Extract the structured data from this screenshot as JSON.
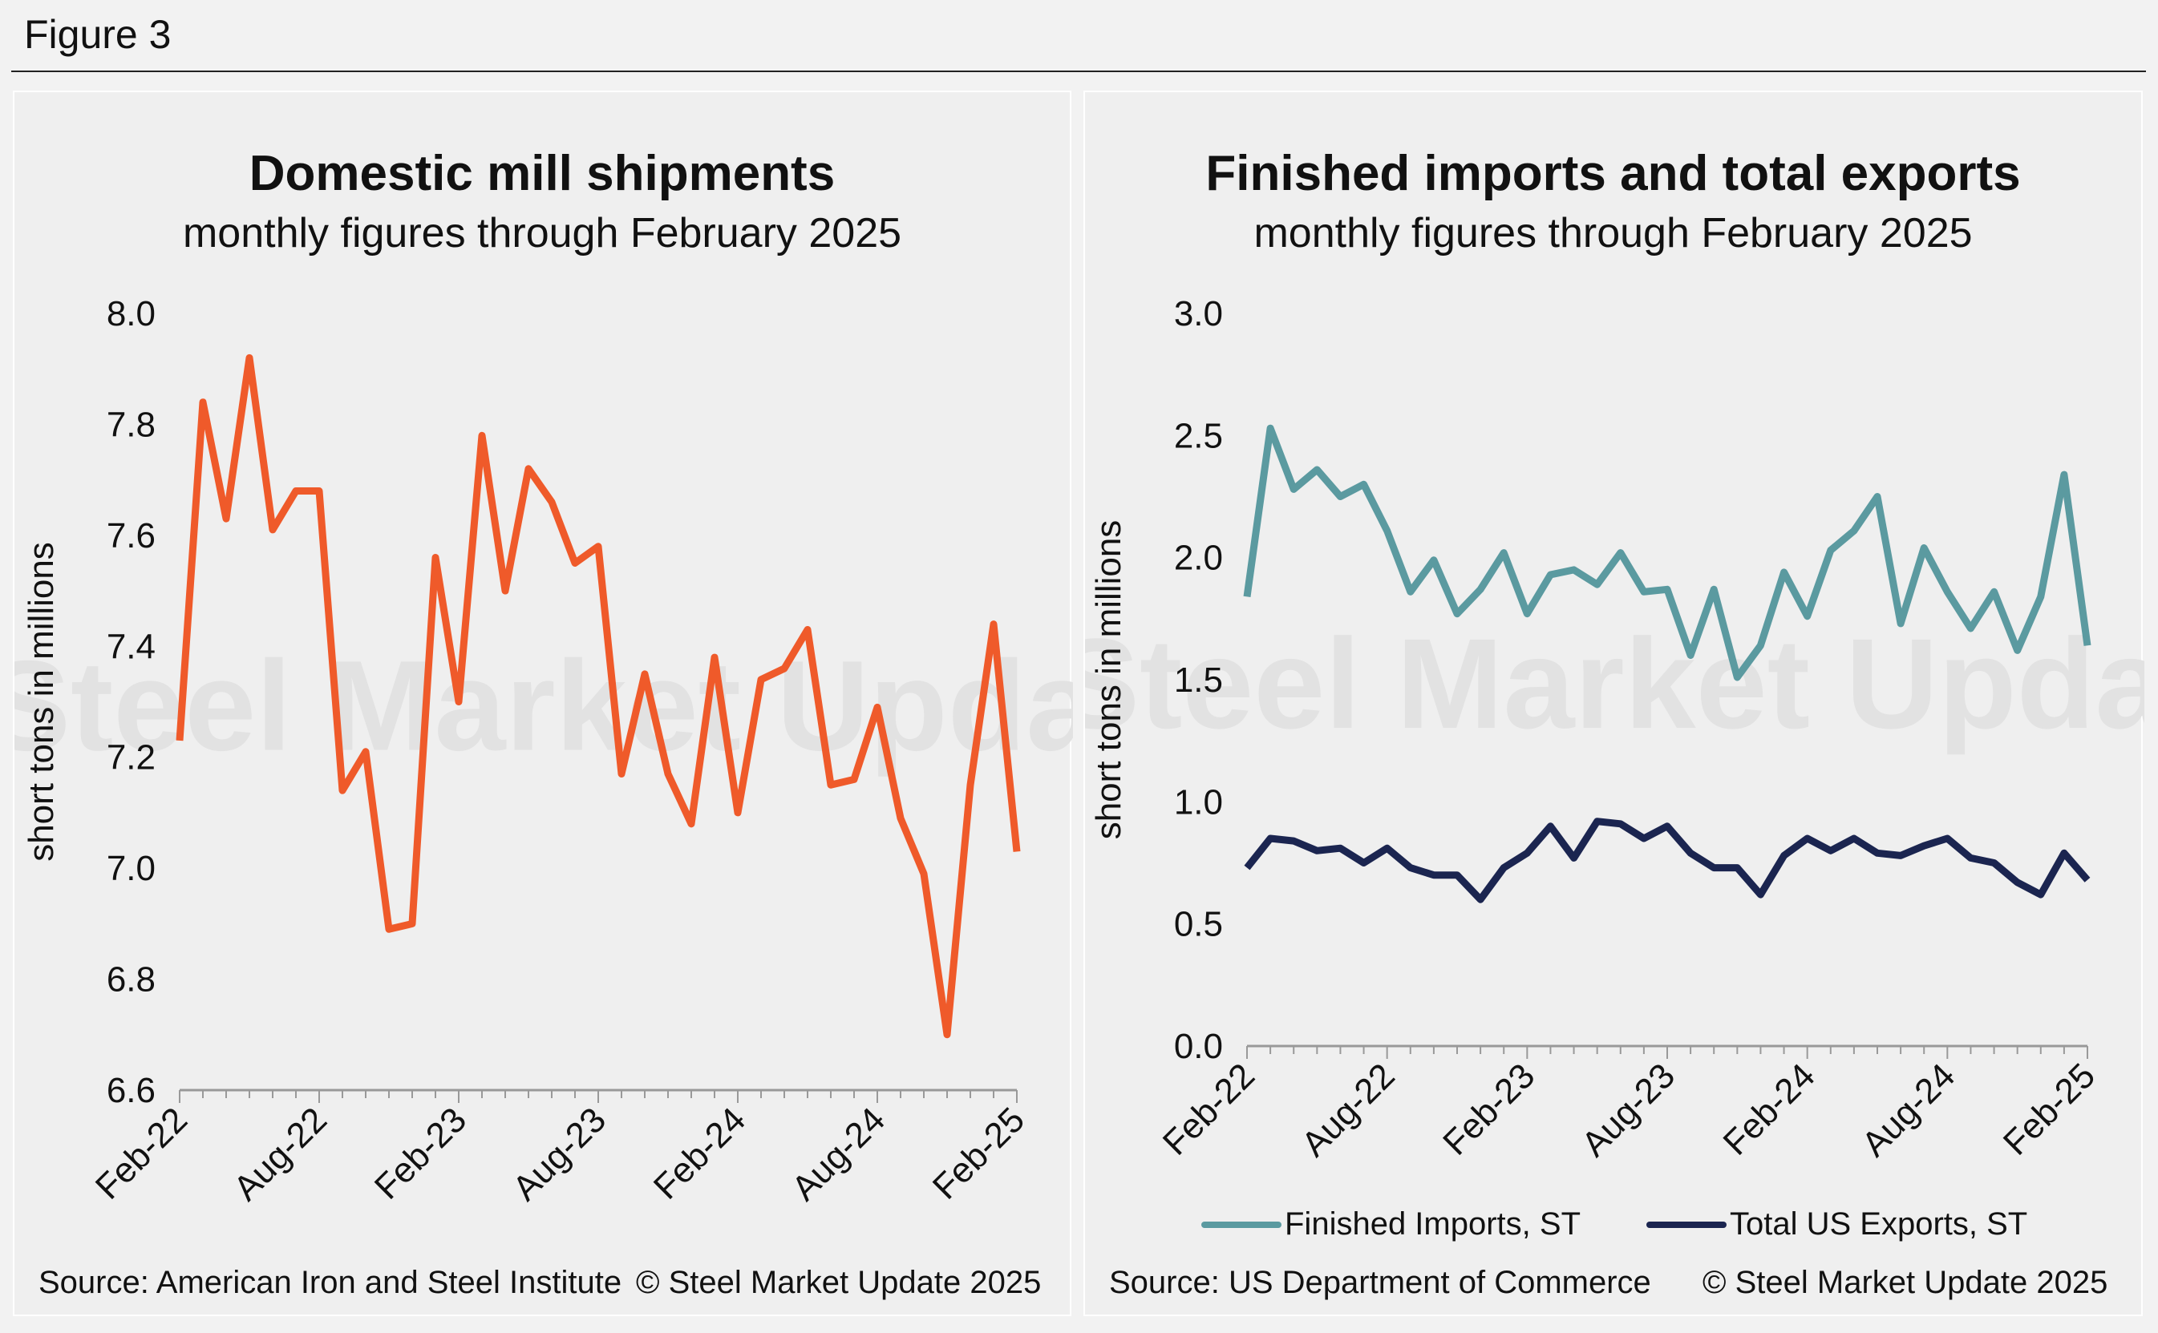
{
  "figure_label": "Figure 3",
  "watermark": "Steel Market Update",
  "colors": {
    "shipments": "#ef5a2a",
    "imports": "#5b9aa0",
    "exports": "#1b2550",
    "axis": "#999999"
  },
  "left": {
    "title": "Domestic mill shipments",
    "subtitle": "monthly figures through February 2025",
    "ylabel": "short tons in millions",
    "source": "Source: American Iron and Steel Institute",
    "copyright": "© Steel Market Update 2025"
  },
  "right": {
    "title": "Finished imports and total exports",
    "subtitle": "monthly figures through February 2025",
    "ylabel": "short tons in millions",
    "source": "Source: US Department of Commerce",
    "copyright": "© Steel Market Update 2025",
    "legend": [
      "Finished Imports, ST",
      "Total US Exports, ST"
    ]
  },
  "chart_data": [
    {
      "type": "line",
      "title": "Domestic mill shipments",
      "subtitle": "monthly figures through February 2025",
      "xlabel": "",
      "ylabel": "short tons in millions",
      "ylim": [
        6.6,
        8.0
      ],
      "yticks": [
        "6.6",
        "6.8",
        "7.0",
        "7.2",
        "7.4",
        "7.6",
        "7.8",
        "8.0"
      ],
      "xticks": [
        "Feb-22",
        "Aug-22",
        "Feb-23",
        "Aug-23",
        "Feb-24",
        "Aug-24",
        "Feb-25"
      ],
      "x": [
        "Feb-22",
        "Mar-22",
        "Apr-22",
        "May-22",
        "Jun-22",
        "Jul-22",
        "Aug-22",
        "Sep-22",
        "Oct-22",
        "Nov-22",
        "Dec-22",
        "Jan-23",
        "Feb-23",
        "Mar-23",
        "Apr-23",
        "May-23",
        "Jun-23",
        "Jul-23",
        "Aug-23",
        "Sep-23",
        "Oct-23",
        "Nov-23",
        "Dec-23",
        "Jan-24",
        "Feb-24",
        "Mar-24",
        "Apr-24",
        "May-24",
        "Jun-24",
        "Jul-24",
        "Aug-24",
        "Sep-24",
        "Oct-24",
        "Nov-24",
        "Dec-24",
        "Jan-25",
        "Feb-25"
      ],
      "series": [
        {
          "values": [
            7.23,
            7.84,
            7.63,
            7.92,
            7.61,
            7.68,
            7.68,
            7.14,
            7.21,
            6.89,
            6.9,
            7.56,
            7.3,
            7.78,
            7.5,
            7.72,
            7.66,
            7.55,
            7.58,
            7.17,
            7.35,
            7.17,
            7.08,
            7.38,
            7.1,
            7.34,
            7.36,
            7.43,
            7.15,
            7.16,
            7.29,
            7.09,
            6.99,
            6.7,
            7.15,
            7.44,
            7.03
          ]
        }
      ],
      "grid": false
    },
    {
      "type": "line",
      "title": "Finished imports and total exports",
      "subtitle": "monthly figures through February 2025",
      "xlabel": "",
      "ylabel": "short tons in millions",
      "ylim": [
        0.0,
        3.0
      ],
      "yticks": [
        "0.0",
        "0.5",
        "1.0",
        "1.5",
        "2.0",
        "2.5",
        "3.0"
      ],
      "xticks": [
        "Feb-22",
        "Aug-22",
        "Feb-23",
        "Aug-23",
        "Feb-24",
        "Aug-24",
        "Feb-25"
      ],
      "x": [
        "Feb-22",
        "Mar-22",
        "Apr-22",
        "May-22",
        "Jun-22",
        "Jul-22",
        "Aug-22",
        "Sep-22",
        "Oct-22",
        "Nov-22",
        "Dec-22",
        "Jan-23",
        "Feb-23",
        "Mar-23",
        "Apr-23",
        "May-23",
        "Jun-23",
        "Jul-23",
        "Aug-23",
        "Sep-23",
        "Oct-23",
        "Nov-23",
        "Dec-23",
        "Jan-24",
        "Feb-24",
        "Mar-24",
        "Apr-24",
        "May-24",
        "Jun-24",
        "Jul-24",
        "Aug-24",
        "Sep-24",
        "Oct-24",
        "Nov-24",
        "Dec-24",
        "Jan-25",
        "Feb-25"
      ],
      "series": [
        {
          "name": "Finished Imports, ST",
          "values": [
            1.84,
            2.53,
            2.28,
            2.36,
            2.25,
            2.3,
            2.11,
            1.86,
            1.99,
            1.77,
            1.87,
            2.02,
            1.77,
            1.93,
            1.95,
            1.89,
            2.02,
            1.86,
            1.87,
            1.6,
            1.87,
            1.51,
            1.64,
            1.94,
            1.76,
            2.03,
            2.11,
            2.25,
            1.73,
            2.04,
            1.86,
            1.71,
            1.86,
            1.62,
            1.84,
            2.34,
            1.64
          ]
        },
        {
          "name": "Total US Exports, ST",
          "values": [
            0.73,
            0.85,
            0.84,
            0.8,
            0.81,
            0.75,
            0.81,
            0.73,
            0.7,
            0.7,
            0.6,
            0.73,
            0.79,
            0.9,
            0.77,
            0.92,
            0.91,
            0.85,
            0.9,
            0.79,
            0.73,
            0.73,
            0.62,
            0.78,
            0.85,
            0.8,
            0.85,
            0.79,
            0.78,
            0.82,
            0.85,
            0.77,
            0.75,
            0.67,
            0.62,
            0.79,
            0.68
          ]
        }
      ],
      "legend": "bottom",
      "grid": false
    }
  ]
}
